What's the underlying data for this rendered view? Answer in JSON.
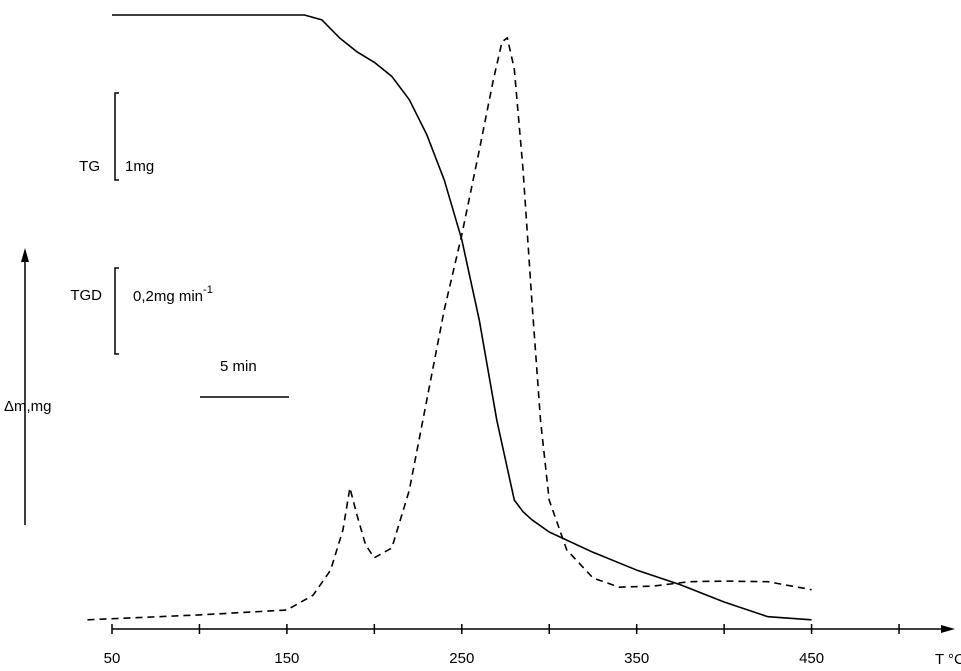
{
  "chart_data": {
    "type": "line",
    "xlabel": "T °C",
    "ylabel": "Δm,mg",
    "xlim": [
      50,
      532
    ],
    "ylim": [
      0,
      100
    ],
    "xticks": [
      50,
      150,
      250,
      350,
      450
    ],
    "xminor_ticks": [
      100,
      200,
      300,
      400,
      500
    ],
    "tg_scale": "1mg",
    "tgd_scale": "0,2mg min",
    "tgd_scale_exp": "-1",
    "time_scale": "5 min",
    "series": [
      {
        "name": "TG",
        "color": "#000000",
        "dash": false,
        "x": [
          50,
          100,
          150,
          160,
          170,
          180,
          190,
          200,
          210,
          220,
          230,
          240,
          250,
          260,
          270,
          280,
          285,
          290,
          300,
          325,
          350,
          375,
          400,
          425,
          450
        ],
        "values": [
          100,
          100,
          100,
          100,
          99.2,
          96.3,
          94,
          92.3,
          90,
          86.2,
          80.5,
          73.1,
          63.4,
          50.3,
          34,
          21,
          19.1,
          17.8,
          15.8,
          12.5,
          9.6,
          7.2,
          4.4,
          2,
          1.5
        ]
      },
      {
        "name": "TGD",
        "color": "#000000",
        "dash": true,
        "x": [
          36,
          100,
          150,
          165,
          175,
          182,
          186,
          190,
          195,
          200,
          210,
          220,
          230,
          240,
          250,
          260,
          268,
          273,
          276,
          280,
          285,
          290,
          295,
          300,
          310,
          325,
          340,
          360,
          380,
          400,
          425,
          450
        ],
        "values": [
          1.5,
          2.3,
          3.1,
          5.5,
          9.6,
          16.1,
          23,
          18.6,
          13.7,
          11.6,
          13.2,
          22.6,
          37.3,
          52,
          64.2,
          78,
          89.4,
          95.6,
          96.3,
          91.2,
          74.9,
          53.6,
          34,
          21,
          12.9,
          8.3,
          6.8,
          7,
          7.7,
          7.8,
          7.7,
          6.4
        ]
      }
    ]
  }
}
